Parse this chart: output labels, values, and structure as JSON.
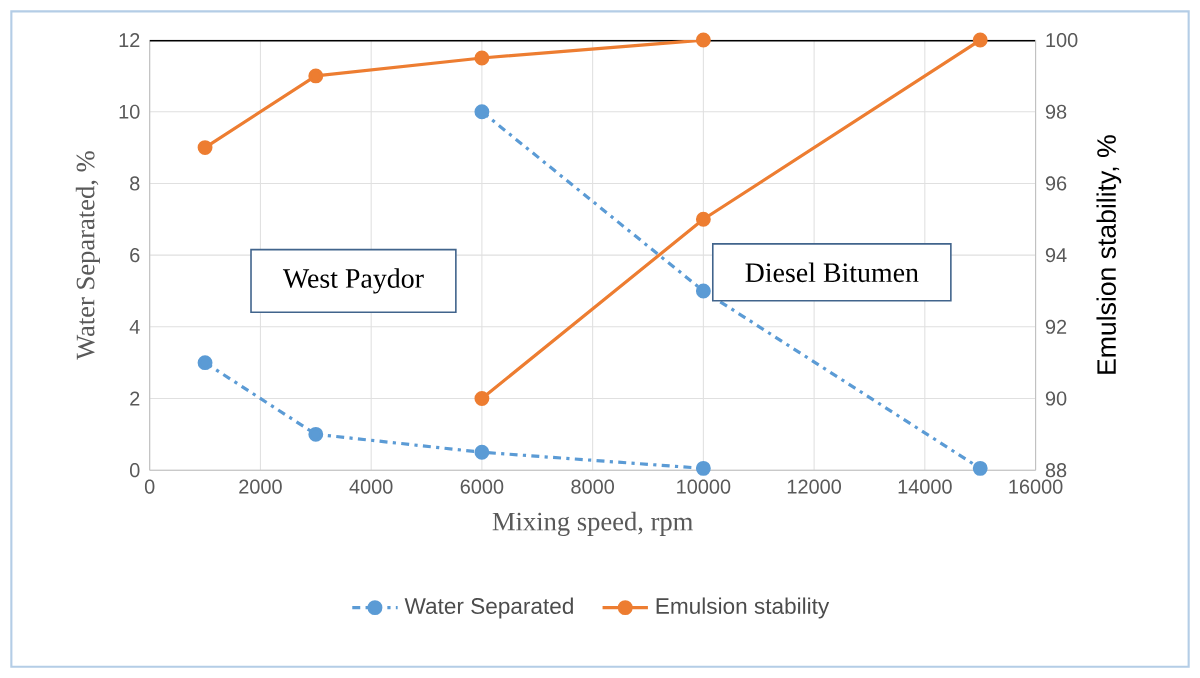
{
  "chart_data": {
    "type": "line",
    "xlabel": "Mixing speed, rpm",
    "ylabel": "Water Separated, %",
    "y2label": "Emulsion stability, %",
    "annotations": [
      "West Paydor",
      "Diesel Bitumen"
    ],
    "series": [
      {
        "name": "Water Separated",
        "color": "#5b9bd5",
        "line_style": "dashed",
        "x": [
          1000,
          3000,
          6000,
          10000
        ],
        "values": [
          3,
          1,
          0.5,
          0.05
        ]
      },
      {
        "color": "#5b9bd5",
        "line_style": "dashed",
        "x": [
          6000,
          10000,
          15000
        ],
        "values": [
          10,
          5,
          0.05
        ]
      },
      {
        "name": "Emulsion stability",
        "color": "#ed7d31",
        "line_style": "solid",
        "axis": "y2",
        "x": [
          1000,
          3000,
          6000,
          10000
        ],
        "values": [
          97,
          99,
          99.5,
          100
        ]
      },
      {
        "color": "#ed7d31",
        "line_style": "solid",
        "axis": "y2",
        "x": [
          6000,
          10000,
          15000
        ],
        "values": [
          90,
          95,
          100
        ]
      }
    ],
    "xlim": [
      0,
      16000
    ],
    "xticks": [
      0,
      2000,
      4000,
      6000,
      8000,
      10000,
      12000,
      14000,
      16000
    ],
    "ylim": [
      0,
      12
    ],
    "yticks": [
      0,
      2,
      4,
      6,
      8,
      10,
      12
    ],
    "y2lim": [
      88,
      100
    ],
    "y2ticks": [
      88,
      90,
      92,
      94,
      96,
      98,
      100
    ],
    "grid": true,
    "legend": "bottom",
    "marker": "circle"
  }
}
